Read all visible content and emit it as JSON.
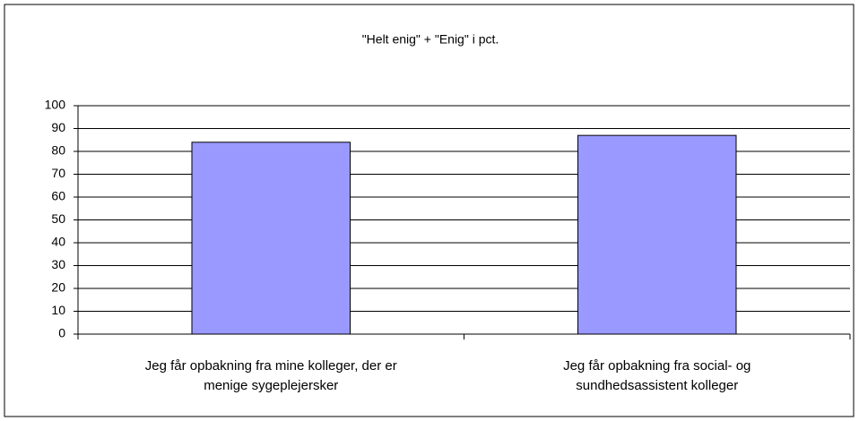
{
  "chart_data": {
    "type": "bar",
    "title": "\"Helt enig\" + \"Enig\" i pct.",
    "categories": [
      "Jeg får opbakning fra mine kolleger, der er menige sygeplejersker",
      "Jeg får opbakning fra social- og sundhedsassistent kolleger"
    ],
    "values": [
      84,
      87
    ],
    "color": "#9999ff",
    "ylim": [
      0,
      100
    ],
    "yticks": [
      0,
      10,
      20,
      30,
      40,
      50,
      60,
      70,
      80,
      90,
      100
    ],
    "grid": true
  }
}
